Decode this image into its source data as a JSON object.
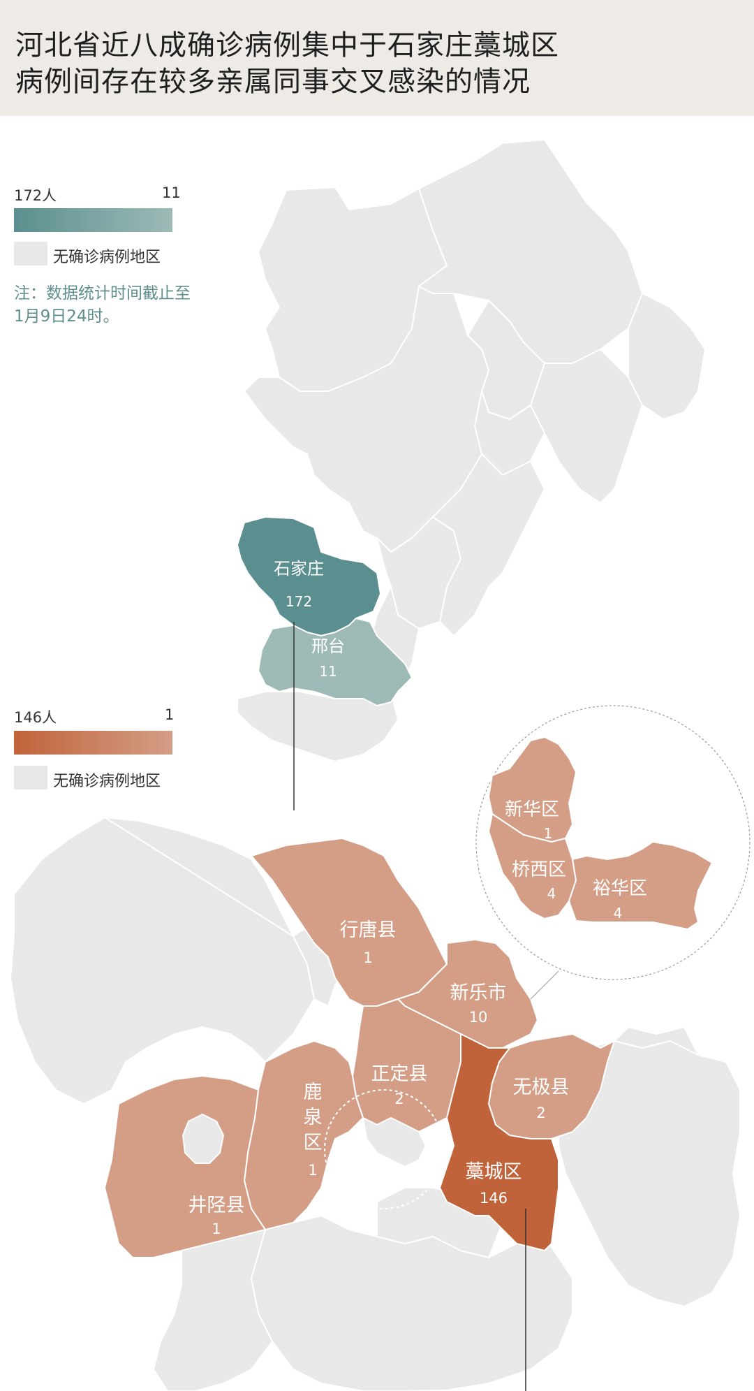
{
  "title": {
    "line1": "河北省近八成确诊病例集中于石家庄藁城区",
    "line2": "病例间存在较多亲属同事交叉感染的情况"
  },
  "legend_top": {
    "max_label": "172人",
    "min_label": "11",
    "no_case_label": "无确诊病例地区",
    "color_max": "#5b8f8f",
    "color_min": "#9dbab6"
  },
  "note": {
    "line1": "注：数据统计时间截止至",
    "line2": "1月9日24时。"
  },
  "legend_bottom": {
    "max_label": "146人",
    "min_label": "1",
    "no_case_label": "无确诊病例地区",
    "color_max": "#c0633a",
    "color_min": "#d49e86"
  },
  "colors": {
    "no_case": "#e8e8e8",
    "border": "#ffffff"
  },
  "province_map": {
    "regions": [
      {
        "name": "石家庄",
        "value": "172"
      },
      {
        "name": "邢台",
        "value": "11"
      }
    ]
  },
  "city_map": {
    "regions": [
      {
        "name": "行唐县",
        "value": "1"
      },
      {
        "name": "新乐市",
        "value": "10"
      },
      {
        "name": "正定县",
        "value": "2"
      },
      {
        "name": "无极县",
        "value": "2"
      },
      {
        "name": "鹿泉区",
        "value": "1"
      },
      {
        "name": "井陉县",
        "value": "1"
      },
      {
        "name": "藁城区",
        "value": "146"
      }
    ]
  },
  "inset_map": {
    "regions": [
      {
        "name": "新华区",
        "value": "1"
      },
      {
        "name": "桥西区",
        "value": "4"
      },
      {
        "name": "裕华区",
        "value": "4"
      }
    ]
  }
}
